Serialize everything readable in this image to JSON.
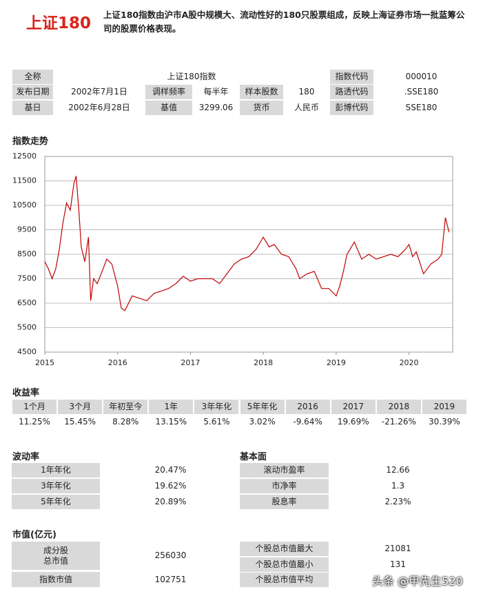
{
  "header": {
    "title": "上证180",
    "description": "上证180指数由沪市A股中规模大、流动性好的180只股票组成，反映上海证券市场一批蓝筹公司的股票价格表现。"
  },
  "info_table": {
    "rows": [
      [
        "全称",
        "上证180指数",
        "指数代码",
        "000010"
      ],
      [
        "发布日期",
        "2002年7月1日",
        "调样频率",
        "每半年",
        "样本股数",
        "180",
        "路透代码",
        ".SSE180"
      ],
      [
        "基日",
        "2002年6月28日",
        "基值",
        "3299.06",
        "货币",
        "人民币",
        "彭博代码",
        "SSE180"
      ]
    ]
  },
  "chart_title": "指数走势",
  "chart_data": {
    "type": "line",
    "color": "#c00000",
    "grid": true,
    "xlim": [
      2015,
      2020.6
    ],
    "xticks": [
      2015,
      2016,
      2017,
      2018,
      2019,
      2020
    ],
    "ylim": [
      4500,
      12500
    ],
    "yticks": [
      4500,
      5500,
      6500,
      7500,
      8500,
      9500,
      10500,
      11500,
      12500
    ],
    "x": [
      2015.0,
      2015.05,
      2015.1,
      2015.15,
      2015.2,
      2015.25,
      2015.3,
      2015.35,
      2015.4,
      2015.43,
      2015.47,
      2015.5,
      2015.55,
      2015.6,
      2015.63,
      2015.67,
      2015.72,
      2015.8,
      2015.85,
      2015.92,
      2016.0,
      2016.05,
      2016.1,
      2016.2,
      2016.3,
      2016.4,
      2016.5,
      2016.6,
      2016.7,
      2016.8,
      2016.9,
      2017.0,
      2017.1,
      2017.2,
      2017.3,
      2017.4,
      2017.5,
      2017.6,
      2017.7,
      2017.8,
      2017.9,
      2018.0,
      2018.08,
      2018.15,
      2018.25,
      2018.35,
      2018.45,
      2018.5,
      2018.6,
      2018.7,
      2018.8,
      2018.9,
      2019.0,
      2019.05,
      2019.1,
      2019.15,
      2019.25,
      2019.35,
      2019.45,
      2019.55,
      2019.65,
      2019.75,
      2019.85,
      2019.95,
      2020.0,
      2020.05,
      2020.1,
      2020.2,
      2020.3,
      2020.4,
      2020.45,
      2020.5,
      2020.55
    ],
    "values": [
      8200,
      7900,
      7500,
      7900,
      8700,
      9800,
      10600,
      10300,
      11400,
      11700,
      10200,
      8800,
      8200,
      9200,
      6600,
      7500,
      7300,
      7900,
      8300,
      8100,
      7200,
      6300,
      6200,
      6800,
      6700,
      6600,
      6900,
      7000,
      7100,
      7300,
      7600,
      7400,
      7500,
      7500,
      7500,
      7300,
      7700,
      8100,
      8300,
      8400,
      8700,
      9200,
      8800,
      8900,
      8500,
      8400,
      7900,
      7500,
      7700,
      7800,
      7100,
      7100,
      6800,
      7200,
      7800,
      8500,
      9000,
      8300,
      8500,
      8300,
      8400,
      8500,
      8400,
      8700,
      8900,
      8400,
      8600,
      7700,
      8100,
      8300,
      8500,
      10000,
      9400
    ]
  },
  "returns": {
    "title": "收益率",
    "headers": [
      "1个月",
      "3个月",
      "年初至今",
      "1年",
      "3年年化",
      "5年年化",
      "2016",
      "2017",
      "2018",
      "2019"
    ],
    "values": [
      "11.25%",
      "15.45%",
      "8.28%",
      "13.15%",
      "5.61%",
      "3.02%",
      "-9.64%",
      "19.69%",
      "-21.26%",
      "30.39%"
    ]
  },
  "volatility": {
    "title": "波动率",
    "rows": [
      [
        "1年年化",
        "20.47%"
      ],
      [
        "3年年化",
        "19.62%"
      ],
      [
        "5年年化",
        "20.89%"
      ]
    ]
  },
  "fundamentals": {
    "title": "基本面",
    "rows": [
      [
        "滚动市盈率",
        "12.66"
      ],
      [
        "市净率",
        "1.3"
      ],
      [
        "股息率",
        "2.23%"
      ]
    ]
  },
  "market_cap": {
    "title": "市值(亿元)",
    "left_rows": [
      [
        "成分股\n总市值",
        "256030"
      ],
      [
        "指数市值",
        "102751"
      ]
    ],
    "right_rows": [
      [
        "个股总市值最大",
        "21081"
      ],
      [
        "个股总市值最小",
        "131"
      ],
      [
        "个股总市值平均"
      ]
    ]
  },
  "watermark": "头条 @甲先生520"
}
